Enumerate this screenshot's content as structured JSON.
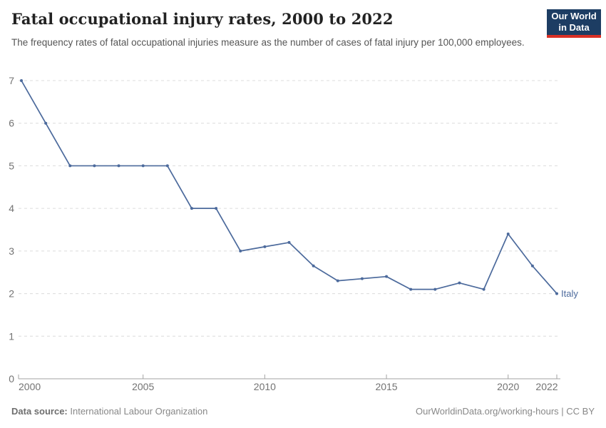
{
  "header": {
    "title": "Fatal occupational injury rates, 2000 to 2022",
    "subtitle": "The frequency rates of fatal occupational injuries measure as the number of cases of fatal injury per 100,000 employees."
  },
  "logo": {
    "line1": "Our World",
    "line2": "in Data",
    "bg_color": "#1d3d63",
    "stripe_color": "#d93025"
  },
  "chart_data": {
    "type": "line",
    "title": "Fatal occupational injury rates, 2000 to 2022",
    "x": [
      2000,
      2001,
      2002,
      2003,
      2004,
      2005,
      2006,
      2007,
      2008,
      2009,
      2010,
      2011,
      2012,
      2013,
      2014,
      2015,
      2016,
      2017,
      2018,
      2019,
      2020,
      2021,
      2022
    ],
    "series": [
      {
        "name": "Italy",
        "color": "#4C6A9C",
        "values": [
          7,
          6,
          5,
          5,
          5,
          5,
          5,
          4,
          4,
          3,
          3.1,
          3.2,
          2.65,
          2.3,
          2.35,
          2.4,
          2.1,
          2.1,
          2.25,
          2.1,
          3.4,
          2.65,
          2
        ]
      }
    ],
    "xlabel": "",
    "ylabel": "",
    "ylim": [
      0,
      7
    ],
    "xlim": [
      2000,
      2022
    ],
    "y_ticks": [
      0,
      1,
      2,
      3,
      4,
      5,
      6,
      7
    ],
    "x_ticks": [
      2000,
      2005,
      2010,
      2015,
      2020,
      2022
    ],
    "x_tick_labels": [
      "2000",
      "2005",
      "2010",
      "2015",
      "2020",
      "2022"
    ],
    "grid": "horizontal-dashed",
    "legend_position": "end-of-line-label"
  },
  "footer": {
    "source_label": "Data source:",
    "source_value": "International Labour Organization",
    "license": "OurWorldinData.org/working-hours | CC BY"
  },
  "colors": {
    "line": "#4C6A9C",
    "grid": "#dcdcdc",
    "axis": "#a3a3a3",
    "tick_label": "#737373",
    "title": "#222222",
    "subtitle": "#555555",
    "footer": "#888888"
  }
}
